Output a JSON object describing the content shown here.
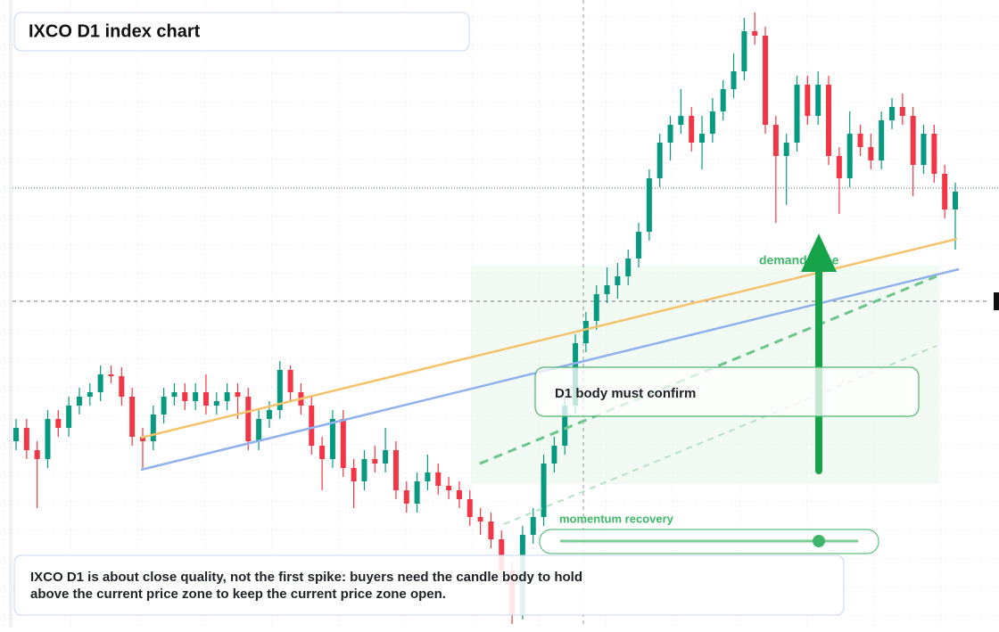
{
  "chart_data": {
    "type": "candlestick",
    "title": "IXCO D1 index chart",
    "open": [
      20.9,
      22.4,
      19.9,
      18.9,
      23.4,
      22.4,
      24.9,
      25.9,
      26.4,
      28.4,
      28.2,
      25.9,
      21.4,
      20.9,
      23.9,
      25.9,
      26.4,
      25.4,
      26.4,
      24.9,
      25.4,
      26.4,
      25.9,
      20.9,
      23.4,
      24.4,
      28.9,
      26.4,
      24.9,
      20.4,
      18.9,
      23.4,
      17.9,
      16.4,
      18.9,
      18.4,
      19.9,
      15.4,
      13.9,
      16.4,
      17.4,
      15.9,
      15.4,
      14.4,
      12.4,
      11.9,
      9.9,
      6.4,
      1.4,
      10.4,
      12.4,
      18.4,
      20.4,
      24.9,
      31.9,
      34.4,
      37.4,
      38.4,
      39.4,
      41.4,
      44.4,
      50.4,
      54.4,
      56.4,
      57.4,
      54.4,
      55.4,
      57.9,
      60.4,
      62.4,
      66.9,
      66.4,
      56.4,
      52.9,
      54.4,
      60.9,
      57.4,
      60.9,
      52.9,
      50.4,
      55.4,
      53.9,
      52.4,
      56.9,
      58.4,
      57.4,
      51.9,
      55.4,
      50.9,
      46.9
    ],
    "high": [
      23.4,
      23.4,
      20.9,
      24.4,
      24.4,
      25.9,
      26.9,
      27.4,
      29.4,
      29.4,
      29.2,
      26.9,
      22.4,
      24.9,
      26.9,
      27.4,
      27.4,
      27.4,
      28.4,
      26.4,
      27.4,
      27.4,
      26.9,
      24.4,
      25.4,
      29.9,
      29.4,
      27.4,
      25.9,
      21.4,
      24.4,
      24.4,
      18.9,
      19.9,
      20.4,
      22.4,
      20.9,
      16.4,
      17.4,
      19.4,
      18.4,
      16.9,
      16.4,
      15.4,
      13.4,
      12.9,
      10.9,
      7.4,
      11.4,
      13.4,
      19.4,
      21.4,
      25.9,
      32.9,
      35.4,
      38.4,
      40.4,
      40.9,
      42.4,
      45.4,
      51.4,
      55.4,
      57.4,
      60.4,
      58.4,
      57.4,
      59.4,
      61.4,
      64.4,
      68.4,
      69.0,
      67.4,
      57.4,
      55.4,
      61.9,
      61.9,
      62.4,
      61.9,
      53.9,
      57.9,
      56.4,
      55.4,
      57.9,
      59.4,
      59.9,
      58.4,
      56.4,
      56.4,
      51.9,
      49.9
    ],
    "low": [
      19.9,
      18.9,
      13.4,
      17.9,
      21.4,
      21.4,
      23.9,
      24.9,
      25.4,
      27.4,
      24.9,
      20.4,
      17.9,
      19.9,
      22.9,
      24.9,
      24.4,
      24.4,
      23.9,
      23.9,
      24.4,
      23.4,
      19.9,
      19.9,
      22.4,
      23.4,
      25.4,
      23.9,
      19.4,
      15.4,
      17.9,
      16.9,
      13.4,
      15.4,
      17.4,
      17.4,
      14.4,
      12.9,
      12.9,
      15.4,
      14.9,
      14.4,
      13.4,
      11.4,
      10.4,
      8.9,
      5.4,
      0.4,
      0.9,
      9.4,
      11.4,
      17.4,
      19.4,
      23.9,
      30.9,
      33.4,
      36.4,
      36.9,
      38.4,
      40.4,
      43.4,
      49.4,
      52.4,
      55.4,
      53.4,
      51.4,
      54.4,
      56.9,
      59.4,
      61.4,
      65.4,
      55.4,
      45.4,
      47.4,
      53.4,
      56.4,
      56.4,
      51.9,
      46.4,
      49.4,
      52.9,
      51.4,
      51.4,
      55.9,
      56.4,
      48.4,
      50.9,
      49.9,
      45.9,
      42.4
    ],
    "close": [
      22.4,
      19.9,
      18.9,
      23.4,
      22.4,
      24.9,
      25.9,
      26.4,
      28.4,
      28.2,
      25.9,
      21.4,
      20.9,
      23.9,
      25.9,
      26.4,
      25.4,
      26.4,
      24.9,
      25.4,
      26.4,
      25.9,
      20.9,
      23.4,
      24.4,
      28.9,
      26.4,
      24.9,
      20.4,
      18.9,
      23.4,
      17.9,
      16.4,
      18.9,
      18.4,
      19.9,
      15.4,
      13.9,
      16.4,
      17.4,
      15.9,
      15.4,
      14.4,
      12.4,
      11.9,
      9.9,
      6.4,
      1.4,
      10.4,
      12.4,
      18.4,
      20.4,
      24.9,
      31.9,
      34.4,
      37.4,
      38.4,
      39.4,
      41.4,
      44.4,
      50.4,
      54.4,
      56.4,
      57.4,
      54.4,
      55.4,
      57.9,
      60.4,
      62.4,
      66.9,
      66.4,
      56.4,
      52.9,
      54.4,
      60.9,
      57.4,
      60.9,
      52.9,
      50.4,
      55.4,
      53.9,
      52.4,
      56.9,
      58.4,
      57.4,
      51.9,
      55.4,
      50.9,
      46.9,
      48.9
    ],
    "ylim": [
      0,
      70.4
    ],
    "up_color": "#089981",
    "down_color": "#f23645",
    "annotations": {
      "demand_zone": "demand zone",
      "confirm": "D1 body must confirm",
      "momentum": "momentum recovery"
    },
    "note": [
      "IXCO D1 is about close quality, not the first spike: buyers need the candle body to hold",
      "above the current price zone to keep the current price zone open."
    ]
  }
}
